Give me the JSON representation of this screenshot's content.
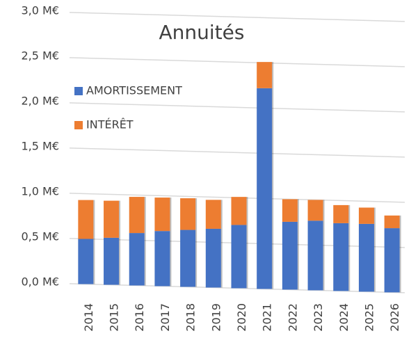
{
  "chart_data": {
    "type": "bar",
    "stacked": true,
    "title": "Annuités",
    "categories": [
      "2014",
      "2015",
      "2016",
      "2017",
      "2018",
      "2019",
      "2020",
      "2021",
      "2022",
      "2023",
      "2024",
      "2025",
      "2026"
    ],
    "series": [
      {
        "name": "AMORTISSEMENT",
        "color": "#4472c4",
        "values": [
          0.5,
          0.52,
          0.58,
          0.61,
          0.63,
          0.65,
          0.7,
          2.22,
          0.75,
          0.77,
          0.75,
          0.75,
          0.71
        ]
      },
      {
        "name": "INTÉRÊT",
        "color": "#ed7d31",
        "values": [
          0.43,
          0.41,
          0.4,
          0.37,
          0.35,
          0.32,
          0.31,
          0.29,
          0.25,
          0.23,
          0.2,
          0.18,
          0.14
        ]
      }
    ],
    "ylim": [
      0,
      3
    ],
    "yticks": [
      {
        "value": 0,
        "label": "0,0 M€"
      },
      {
        "value": 0.5,
        "label": "0,5 M€"
      },
      {
        "value": 1,
        "label": "1,0 M€"
      },
      {
        "value": 1.5,
        "label": "1,5 M€"
      },
      {
        "value": 2,
        "label": "2,0 M€"
      },
      {
        "value": 2.5,
        "label": "2,5 M€"
      },
      {
        "value": 3,
        "label": "3,0 M€"
      }
    ],
    "grid": true,
    "legend": "left"
  }
}
